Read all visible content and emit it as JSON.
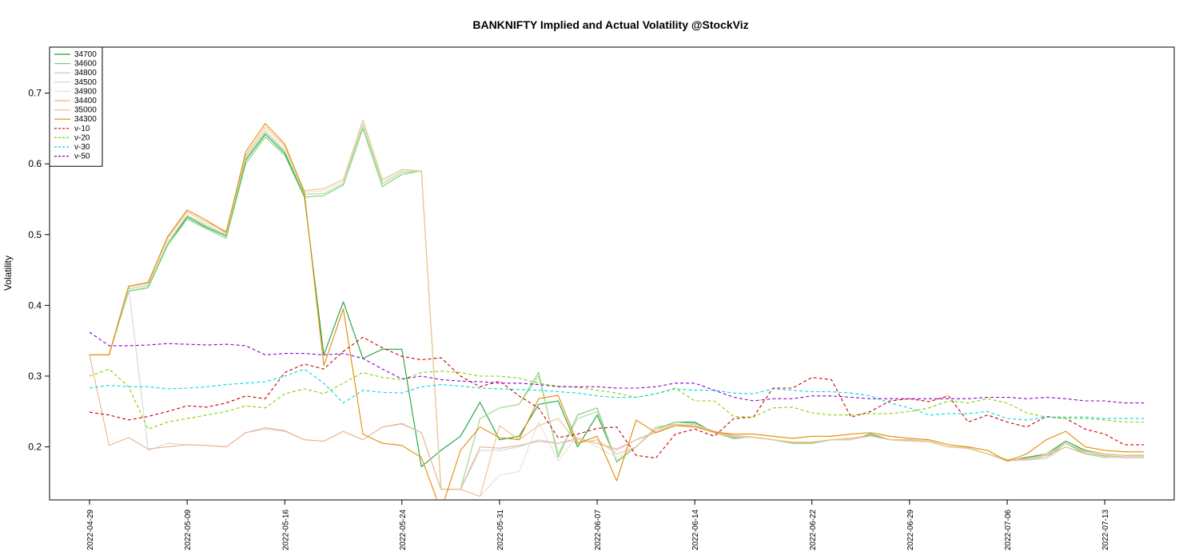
{
  "chart_data": {
    "type": "line",
    "title": "BANKNIFTY Implied and Actual Volatility @StockViz",
    "xlabel": "",
    "ylabel": "Volatility",
    "ylim": [
      0.125,
      0.765
    ],
    "yticks": [
      0.2,
      0.3,
      0.4,
      0.5,
      0.6,
      0.7
    ],
    "ytick_labels": [
      "0.2",
      "0.3",
      "0.4",
      "0.5",
      "0.6",
      "0.7"
    ],
    "x_dates": [
      "2022-04-29",
      "2022-05-02",
      "2022-05-04",
      "2022-05-05",
      "2022-05-06",
      "2022-05-09",
      "2022-05-10",
      "2022-05-11",
      "2022-05-12",
      "2022-05-13",
      "2022-05-16",
      "2022-05-17",
      "2022-05-18",
      "2022-05-19",
      "2022-05-20",
      "2022-05-23",
      "2022-05-24",
      "2022-05-25",
      "2022-05-26",
      "2022-05-27",
      "2022-05-30",
      "2022-05-31",
      "2022-06-01",
      "2022-06-02",
      "2022-06-03",
      "2022-06-06",
      "2022-06-07",
      "2022-06-08",
      "2022-06-09",
      "2022-06-10",
      "2022-06-13",
      "2022-06-14",
      "2022-06-15",
      "2022-06-16",
      "2022-06-17",
      "2022-06-20",
      "2022-06-21",
      "2022-06-22",
      "2022-06-23",
      "2022-06-24",
      "2022-06-27",
      "2022-06-28",
      "2022-06-29",
      "2022-06-30",
      "2022-07-01",
      "2022-07-04",
      "2022-07-05",
      "2022-07-06",
      "2022-07-07",
      "2022-07-08",
      "2022-07-11",
      "2022-07-12",
      "2022-07-13",
      "2022-07-14",
      "2022-07-15"
    ],
    "xticks": [
      "2022-04-29",
      "2022-05-09",
      "2022-05-16",
      "2022-05-24",
      "2022-05-31",
      "2022-06-07",
      "2022-06-14",
      "2022-06-22",
      "2022-06-29",
      "2022-07-06",
      "2022-07-13"
    ],
    "legend_position": "top-left",
    "grid": false,
    "series": [
      {
        "name": "34700",
        "color": "#1aa33a",
        "dash": "",
        "values": [
          0.33,
          0.33,
          0.42,
          0.425,
          0.485,
          0.525,
          0.51,
          0.498,
          0.605,
          0.642,
          0.615,
          0.555,
          0.33,
          0.405,
          0.325,
          0.338,
          0.338,
          0.172,
          0.195,
          0.215,
          0.263,
          0.21,
          0.215,
          0.26,
          0.265,
          0.2,
          0.245,
          0.18,
          0.2,
          0.225,
          0.235,
          0.235,
          0.22,
          0.212,
          0.214,
          0.21,
          0.205,
          0.205,
          0.21,
          0.21,
          0.218,
          0.21,
          0.208,
          0.208,
          0.2,
          0.198,
          0.19,
          0.18,
          0.185,
          0.19,
          0.208,
          0.195,
          0.19,
          0.188,
          0.188
        ]
      },
      {
        "name": "34600",
        "color": "#7ccf6f",
        "dash": "",
        "values": [
          0.33,
          0.33,
          0.42,
          0.425,
          0.485,
          0.522,
          0.508,
          0.495,
          0.6,
          0.638,
          0.612,
          0.553,
          0.555,
          0.57,
          0.65,
          0.568,
          0.585,
          0.59,
          0.14,
          0.14,
          0.24,
          0.255,
          0.26,
          0.305,
          0.185,
          0.245,
          0.255,
          0.178,
          0.2,
          0.225,
          0.235,
          0.233,
          0.22,
          0.215,
          0.213,
          0.21,
          0.205,
          0.205,
          0.21,
          0.212,
          0.216,
          0.21,
          0.208,
          0.207,
          0.2,
          0.198,
          0.19,
          0.18,
          0.182,
          0.185,
          0.205,
          0.19,
          0.185,
          0.185,
          0.185
        ]
      },
      {
        "name": "34800",
        "color": "#a9dba0",
        "dash": "",
        "values": [
          0.33,
          0.33,
          0.423,
          0.428,
          0.488,
          0.527,
          0.512,
          0.5,
          0.608,
          0.645,
          0.618,
          0.557,
          0.558,
          0.572,
          0.655,
          0.572,
          0.588,
          0.59,
          0.14,
          0.14,
          0.24,
          0.255,
          0.26,
          0.3,
          0.19,
          0.24,
          0.25,
          0.18,
          0.2,
          0.228,
          0.232,
          0.23,
          0.22,
          0.213,
          0.213,
          0.21,
          0.206,
          0.206,
          0.21,
          0.212,
          0.216,
          0.21,
          0.208,
          0.207,
          0.2,
          0.199,
          0.19,
          0.181,
          0.182,
          0.188,
          0.205,
          0.192,
          0.188,
          0.186,
          0.186
        ]
      },
      {
        "name": "34500",
        "color": "#d6d6d6",
        "dash": "",
        "values": [
          0.33,
          0.33,
          0.425,
          0.195,
          0.205,
          0.203,
          0.202,
          0.2,
          0.22,
          0.225,
          0.222,
          0.21,
          0.208,
          0.222,
          0.21,
          0.228,
          0.232,
          0.22,
          0.14,
          0.14,
          0.195,
          0.195,
          0.2,
          0.21,
          0.205,
          0.21,
          0.205,
          0.195,
          0.21,
          0.222,
          0.23,
          0.232,
          0.222,
          0.216,
          0.214,
          0.21,
          0.206,
          0.207,
          0.21,
          0.212,
          0.216,
          0.21,
          0.21,
          0.208,
          0.2,
          0.198,
          0.19,
          0.182,
          0.183,
          0.185,
          0.2,
          0.19,
          0.186,
          0.185,
          0.185
        ]
      },
      {
        "name": "34900",
        "color": "#e6e0d8",
        "dash": "",
        "values": [
          0.33,
          0.33,
          0.425,
          0.43,
          0.49,
          0.528,
          0.514,
          0.502,
          0.61,
          0.648,
          0.62,
          0.56,
          0.562,
          0.575,
          0.66,
          0.575,
          0.59,
          0.59,
          0.14,
          0.14,
          0.13,
          0.16,
          0.165,
          0.235,
          0.18,
          0.215,
          0.2,
          0.185,
          0.2,
          0.225,
          0.23,
          0.23,
          0.22,
          0.214,
          0.213,
          0.21,
          0.206,
          0.206,
          0.21,
          0.21,
          0.215,
          0.21,
          0.208,
          0.207,
          0.2,
          0.198,
          0.19,
          0.18,
          0.181,
          0.183,
          0.2,
          0.19,
          0.186,
          0.184,
          0.184
        ]
      },
      {
        "name": "34400",
        "color": "#e8b48f",
        "dash": "",
        "values": [
          0.33,
          0.202,
          0.213,
          0.197,
          0.2,
          0.203,
          0.202,
          0.2,
          0.22,
          0.227,
          0.223,
          0.21,
          0.208,
          0.222,
          0.21,
          0.228,
          0.233,
          0.22,
          0.14,
          0.14,
          0.2,
          0.198,
          0.202,
          0.208,
          0.205,
          0.212,
          0.205,
          0.197,
          0.21,
          0.22,
          0.23,
          0.23,
          0.222,
          0.216,
          0.214,
          0.21,
          0.206,
          0.206,
          0.21,
          0.212,
          0.216,
          0.21,
          0.21,
          0.208,
          0.2,
          0.198,
          0.19,
          0.182,
          0.183,
          0.188,
          0.2,
          0.19,
          0.187,
          0.186,
          0.186
        ]
      },
      {
        "name": "35000",
        "color": "#f0c08a",
        "dash": "",
        "values": [
          0.33,
          0.33,
          0.427,
          0.433,
          0.495,
          0.532,
          0.517,
          0.505,
          0.612,
          0.652,
          0.625,
          0.562,
          0.565,
          0.578,
          0.662,
          0.578,
          0.592,
          0.59,
          0.14,
          0.14,
          0.13,
          0.23,
          0.21,
          0.23,
          0.24,
          0.205,
          0.21,
          0.19,
          0.2,
          0.225,
          0.232,
          0.23,
          0.22,
          0.215,
          0.214,
          0.21,
          0.207,
          0.207,
          0.21,
          0.211,
          0.216,
          0.21,
          0.209,
          0.208,
          0.2,
          0.198,
          0.19,
          0.181,
          0.182,
          0.19,
          0.205,
          0.194,
          0.19,
          0.188,
          0.188
        ]
      },
      {
        "name": "34300",
        "color": "#e58a00",
        "dash": "",
        "values": [
          0.33,
          0.33,
          0.427,
          0.432,
          0.497,
          0.535,
          0.52,
          0.503,
          0.617,
          0.657,
          0.628,
          0.56,
          0.315,
          0.395,
          0.218,
          0.205,
          0.202,
          0.185,
          0.11,
          0.195,
          0.228,
          0.213,
          0.21,
          0.268,
          0.273,
          0.205,
          0.215,
          0.152,
          0.238,
          0.22,
          0.23,
          0.228,
          0.221,
          0.218,
          0.218,
          0.215,
          0.212,
          0.215,
          0.215,
          0.218,
          0.22,
          0.215,
          0.212,
          0.21,
          0.203,
          0.2,
          0.195,
          0.18,
          0.19,
          0.21,
          0.222,
          0.2,
          0.195,
          0.193,
          0.193
        ]
      },
      {
        "name": "v-10",
        "color": "#cc0000",
        "dash": "4,3",
        "values": [
          0.249,
          0.245,
          0.238,
          0.243,
          0.25,
          0.258,
          0.256,
          0.262,
          0.272,
          0.268,
          0.305,
          0.317,
          0.31,
          0.335,
          0.355,
          0.34,
          0.328,
          0.323,
          0.326,
          0.3,
          0.285,
          0.293,
          0.272,
          0.255,
          0.213,
          0.218,
          0.226,
          0.228,
          0.188,
          0.184,
          0.218,
          0.225,
          0.215,
          0.24,
          0.242,
          0.283,
          0.283,
          0.298,
          0.295,
          0.242,
          0.25,
          0.265,
          0.268,
          0.264,
          0.272,
          0.235,
          0.245,
          0.235,
          0.228,
          0.243,
          0.24,
          0.225,
          0.218,
          0.203,
          0.203
        ]
      },
      {
        "name": "v-20",
        "color": "#7fd400",
        "dash": "4,3",
        "values": [
          0.3,
          0.31,
          0.285,
          0.225,
          0.235,
          0.24,
          0.245,
          0.25,
          0.258,
          0.255,
          0.275,
          0.282,
          0.275,
          0.29,
          0.305,
          0.298,
          0.295,
          0.305,
          0.307,
          0.305,
          0.3,
          0.3,
          0.297,
          0.29,
          0.286,
          0.284,
          0.28,
          0.276,
          0.27,
          0.275,
          0.283,
          0.265,
          0.265,
          0.243,
          0.242,
          0.255,
          0.256,
          0.248,
          0.245,
          0.245,
          0.247,
          0.247,
          0.25,
          0.255,
          0.265,
          0.262,
          0.268,
          0.262,
          0.248,
          0.242,
          0.24,
          0.24,
          0.238,
          0.235,
          0.235
        ]
      },
      {
        "name": "v-30",
        "color": "#00d8e0",
        "dash": "4,3",
        "values": [
          0.283,
          0.287,
          0.285,
          0.285,
          0.282,
          0.283,
          0.285,
          0.288,
          0.29,
          0.292,
          0.3,
          0.31,
          0.29,
          0.262,
          0.28,
          0.277,
          0.276,
          0.285,
          0.288,
          0.286,
          0.283,
          0.282,
          0.281,
          0.28,
          0.278,
          0.276,
          0.272,
          0.27,
          0.27,
          0.275,
          0.282,
          0.28,
          0.28,
          0.276,
          0.275,
          0.282,
          0.28,
          0.278,
          0.278,
          0.276,
          0.272,
          0.262,
          0.255,
          0.245,
          0.247,
          0.247,
          0.25,
          0.24,
          0.238,
          0.242,
          0.242,
          0.242,
          0.24,
          0.24,
          0.24
        ]
      },
      {
        "name": "v-50",
        "color": "#8a00cc",
        "dash": "4,3",
        "values": [
          0.362,
          0.343,
          0.343,
          0.344,
          0.346,
          0.345,
          0.344,
          0.345,
          0.343,
          0.33,
          0.332,
          0.332,
          0.33,
          0.332,
          0.325,
          0.31,
          0.296,
          0.3,
          0.295,
          0.293,
          0.292,
          0.29,
          0.29,
          0.288,
          0.285,
          0.285,
          0.285,
          0.283,
          0.283,
          0.285,
          0.29,
          0.29,
          0.28,
          0.27,
          0.265,
          0.268,
          0.268,
          0.272,
          0.272,
          0.27,
          0.268,
          0.268,
          0.268,
          0.268,
          0.268,
          0.268,
          0.27,
          0.27,
          0.268,
          0.27,
          0.268,
          0.265,
          0.265,
          0.262,
          0.262
        ]
      }
    ]
  }
}
